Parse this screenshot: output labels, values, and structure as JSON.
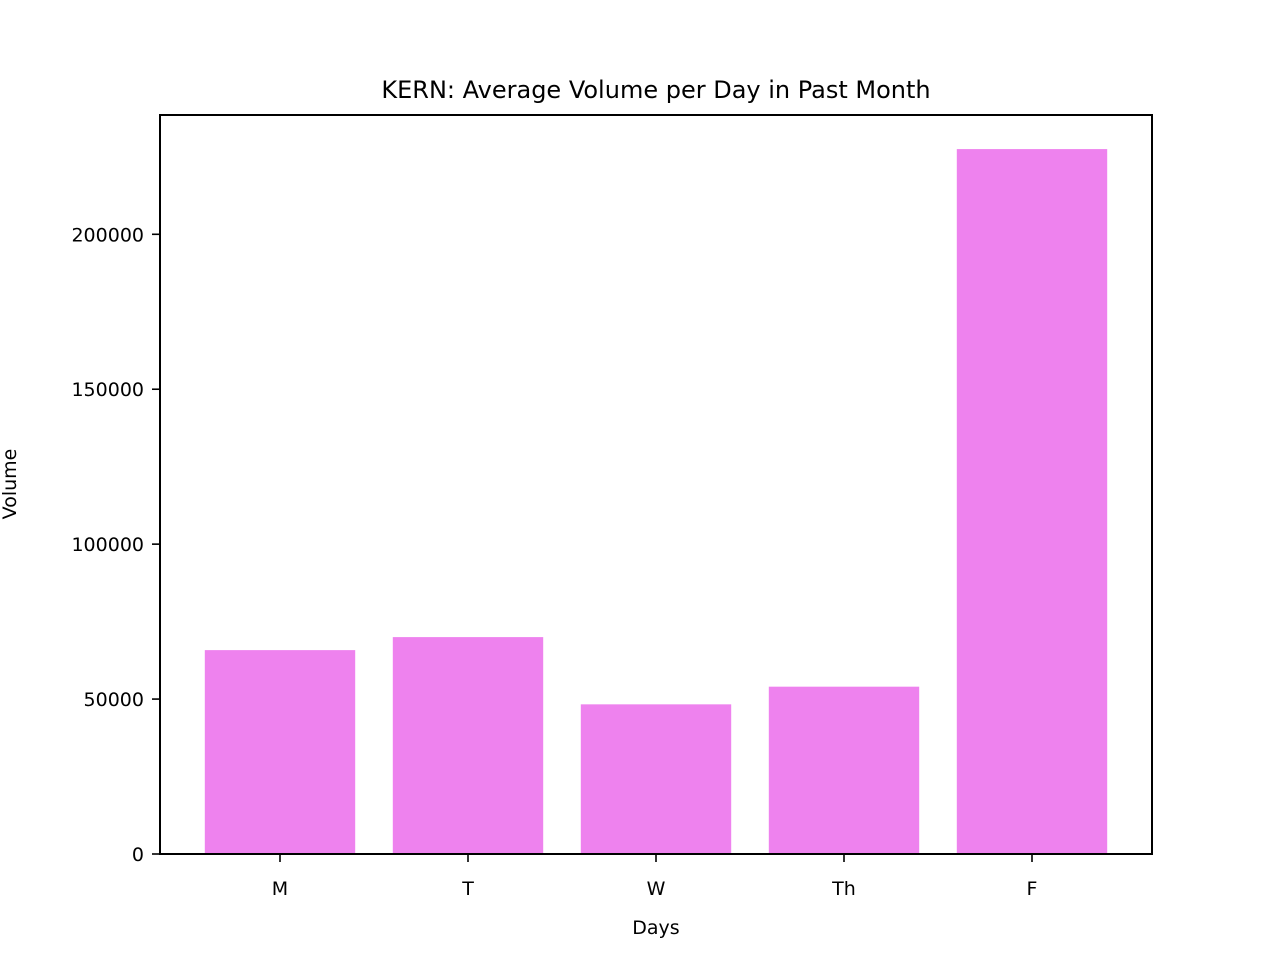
{
  "chart_data": {
    "type": "bar",
    "title": "KERN: Average Volume per Day in Past Month",
    "xlabel": "Days",
    "ylabel": "Volume",
    "categories": [
      "M",
      "T",
      "W",
      "Th",
      "F"
    ],
    "values": [
      65800,
      70000,
      48300,
      54000,
      227500
    ],
    "ylim": [
      0,
      238500
    ],
    "yticks": [
      0,
      50000,
      100000,
      150000,
      200000
    ],
    "ytick_labels": [
      "0",
      "50000",
      "100000",
      "150000",
      "200000"
    ],
    "bar_color": "#ee82ee",
    "grid": false,
    "legend": "none"
  }
}
